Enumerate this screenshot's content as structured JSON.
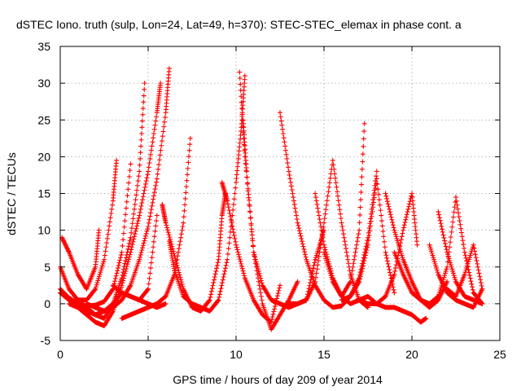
{
  "chart_data": {
    "type": "scatter",
    "title": "dSTEC Iono. truth (sulp, Lon=24, Lat=49, h=370): STEC-STEC_elemax in phase cont. a",
    "xlabel": "GPS time / hours of day 209 of year 2014",
    "ylabel": "dSTEC  / TECUs",
    "xlim": [
      0,
      25
    ],
    "ylim": [
      -5,
      35
    ],
    "xticks": [
      0,
      5,
      10,
      15,
      20,
      25
    ],
    "yticks": [
      -5,
      0,
      5,
      10,
      15,
      20,
      25,
      30,
      35
    ],
    "grid": true,
    "marker": "+",
    "color": "#ff0000",
    "series": [
      {
        "x": [
          0.0,
          0.5,
          1.0,
          1.5,
          2.0,
          2.5,
          3.0,
          3.5,
          4.0,
          4.5,
          4.8
        ],
        "y": [
          1.5,
          0.5,
          0.0,
          -0.5,
          -1.5,
          -2.0,
          0.0,
          3.5,
          9.0,
          18.0,
          30.0
        ]
      },
      {
        "x": [
          1.0,
          1.5,
          2.0,
          2.5,
          3.0,
          3.5,
          4.0,
          4.5,
          5.0,
          5.5,
          5.7
        ],
        "y": [
          -0.5,
          -1.5,
          -2.5,
          -3.0,
          -1.0,
          2.5,
          7.0,
          12.0,
          18.0,
          26.0,
          30.0
        ]
      },
      {
        "x": [
          1.5,
          2.0,
          2.5,
          3.0,
          3.5,
          4.0,
          4.5,
          5.0,
          5.5,
          6.0,
          6.2
        ],
        "y": [
          0.0,
          -0.5,
          -1.0,
          -0.5,
          0.5,
          2.5,
          6.0,
          10.5,
          17.0,
          26.0,
          32.0
        ]
      },
      {
        "x": [
          0.0,
          0.5,
          1.0,
          1.5,
          2.0,
          2.5,
          3.0,
          3.2
        ],
        "y": [
          5.0,
          2.0,
          0.5,
          0.5,
          2.0,
          6.0,
          14.0,
          19.5
        ]
      },
      {
        "x": [
          0.1,
          0.5,
          1.0,
          1.5,
          2.0,
          2.2
        ],
        "y": [
          9.0,
          7.0,
          4.0,
          2.0,
          5.0,
          10.0
        ]
      },
      {
        "x": [
          0.0,
          0.5,
          1.0,
          1.5,
          2.0,
          2.5,
          3.0,
          3.5,
          4.0
        ],
        "y": [
          2.0,
          0.8,
          0.0,
          -0.3,
          -0.2,
          0.3,
          2.0,
          7.0,
          19.0
        ]
      },
      {
        "x": [
          0.5,
          1.0,
          1.5,
          2.0,
          2.5,
          3.0,
          3.5,
          4.0,
          4.5,
          5.0,
          5.5,
          6.0
        ],
        "y": [
          0.0,
          -0.5,
          -1.0,
          -1.5,
          -1.0,
          0.0,
          1.5,
          1.0,
          0.5,
          0.0,
          -0.5,
          0.0
        ]
      },
      {
        "x": [
          3.0,
          3.5,
          4.0,
          4.5,
          5.0,
          5.5
        ],
        "y": [
          2.5,
          1.5,
          1.0,
          0.5,
          2.0,
          12.0
        ]
      },
      {
        "x": [
          3.5,
          4.0,
          4.5,
          5.0,
          5.5,
          6.0,
          6.5,
          7.0,
          7.4
        ],
        "y": [
          -2.0,
          -1.5,
          -1.0,
          -0.5,
          0.0,
          1.0,
          4.0,
          11.0,
          22.5
        ]
      },
      {
        "x": [
          5.8,
          6.0,
          6.5,
          7.0,
          7.5,
          8.0,
          8.5,
          9.0,
          9.2,
          9.4
        ],
        "y": [
          13.5,
          11.0,
          6.5,
          2.0,
          -0.5,
          -1.0,
          0.5,
          6.0,
          12.0,
          15.0
        ]
      },
      {
        "x": [
          6.2,
          6.5,
          7.0,
          7.5,
          8.0,
          8.5,
          9.0,
          9.5,
          10.0,
          10.3,
          10.5
        ],
        "y": [
          8.5,
          4.5,
          1.0,
          0.0,
          -0.5,
          -1.0,
          0.5,
          6.0,
          16.5,
          24.0,
          31.0
        ]
      },
      {
        "x": [
          9.2,
          9.5,
          10.0,
          10.5,
          11.0,
          11.5,
          12.0,
          12.5
        ],
        "y": [
          16.5,
          14.0,
          8.0,
          3.5,
          0.5,
          -1.5,
          -2.5,
          2.5
        ]
      },
      {
        "x": [
          10.2,
          10.5,
          11.0,
          11.5,
          12.0,
          12.5,
          13.0,
          13.5
        ],
        "y": [
          31.5,
          20.0,
          7.0,
          0.0,
          -3.5,
          -1.5,
          0.5,
          3.0
        ]
      },
      {
        "x": [
          10.4,
          10.6,
          11.0,
          11.5,
          12.0,
          12.5,
          13.0,
          13.5,
          14.0,
          14.5,
          15.0
        ],
        "y": [
          25.0,
          18.0,
          7.0,
          2.5,
          0.5,
          0.0,
          -0.5,
          0.0,
          0.5,
          6.0,
          10.0
        ]
      },
      {
        "x": [
          12.5,
          13.0,
          13.5,
          14.0,
          14.5,
          15.0,
          15.5,
          16.0,
          16.5,
          17.0,
          17.5,
          18.0
        ],
        "y": [
          26.0,
          18.0,
          11.0,
          6.0,
          2.5,
          0.5,
          -0.5,
          -0.3,
          1.0,
          3.5,
          9.0,
          18.0
        ]
      },
      {
        "x": [
          13.0,
          13.5,
          14.0,
          14.5,
          15.0,
          15.5,
          16.0,
          16.5,
          17.0,
          17.5
        ],
        "y": [
          0.0,
          0.0,
          0.5,
          3.0,
          11.0,
          19.5,
          11.0,
          4.0,
          0.5,
          -0.5
        ]
      },
      {
        "x": [
          14.5,
          15.0,
          15.5,
          16.0,
          16.5,
          17.0,
          17.5,
          18.0,
          18.5,
          19.0,
          19.5,
          20.0,
          20.5,
          20.8
        ],
        "y": [
          15.0,
          8.0,
          3.5,
          1.0,
          0.0,
          0.5,
          1.0,
          0.0,
          -0.5,
          -0.5,
          -1.0,
          -1.5,
          -2.5,
          -2.0
        ]
      },
      {
        "x": [
          15.0,
          15.5,
          16.0,
          16.5,
          17.0,
          17.3
        ],
        "y": [
          7.0,
          3.0,
          1.0,
          3.0,
          10.0,
          24.5
        ]
      },
      {
        "x": [
          16.0,
          16.5,
          17.0,
          17.5,
          18.0,
          18.5,
          19.0
        ],
        "y": [
          0.5,
          1.0,
          3.0,
          8.0,
          17.0,
          7.0,
          1.5
        ]
      },
      {
        "x": [
          17.0,
          17.5,
          18.0,
          18.5,
          19.0,
          19.5,
          20.0,
          20.3
        ],
        "y": [
          0.5,
          0.0,
          0.0,
          1.0,
          4.0,
          10.0,
          15.0,
          8.0
        ]
      },
      {
        "x": [
          18.5,
          19.0,
          19.5,
          20.0,
          20.5,
          21.0,
          21.5,
          22.0
        ],
        "y": [
          15.0,
          10.0,
          6.0,
          3.0,
          0.5,
          -0.5,
          0.5,
          3.0
        ]
      },
      {
        "x": [
          19.0,
          19.5,
          20.0,
          20.5,
          21.0,
          21.5,
          22.0,
          22.5,
          23.0,
          23.5,
          24.0
        ],
        "y": [
          7.0,
          4.0,
          1.5,
          0.5,
          0.0,
          1.0,
          5.0,
          14.5,
          7.0,
          1.5,
          0.0
        ]
      },
      {
        "x": [
          21.0,
          21.5,
          22.0,
          22.5,
          23.0,
          23.5,
          24.0
        ],
        "y": [
          8.0,
          4.0,
          1.5,
          0.5,
          0.0,
          -0.5,
          2.0
        ]
      },
      {
        "x": [
          21.5,
          22.0,
          22.5,
          23.0,
          23.5,
          24.0
        ],
        "y": [
          12.5,
          7.0,
          3.0,
          1.0,
          0.5,
          0.0
        ]
      },
      {
        "x": [
          22.0,
          22.5,
          23.0,
          23.5,
          24.0
        ],
        "y": [
          2.0,
          1.0,
          4.0,
          8.0,
          2.0
        ]
      }
    ]
  }
}
